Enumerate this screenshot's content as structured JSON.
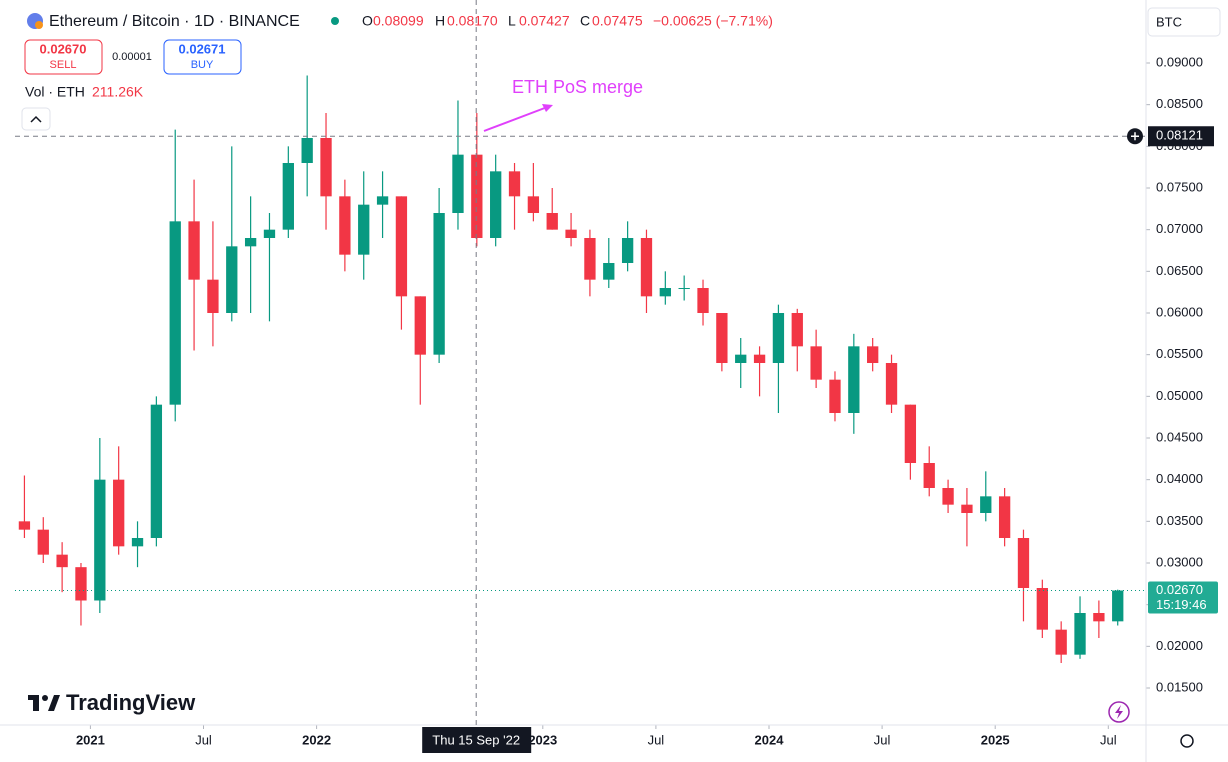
{
  "chart_data": {
    "type": "candlestick",
    "title": "Ethereum / Bitcoin · 1D · BINANCE",
    "ohlc_legend": {
      "o_label": "O",
      "o": "0.08099",
      "h_label": "H",
      "h": "0.08170",
      "l_label": "L",
      "l": "0.07427",
      "c_label": "C",
      "c": "0.07475",
      "change": "−0.00625 (−7.71%)"
    },
    "trade": {
      "sell_price": "0.02670",
      "sell_label": "SELL",
      "spread": "0.00001",
      "buy_price": "0.02671",
      "buy_label": "BUY"
    },
    "volume_legend": {
      "label": "Vol · ETH",
      "value": "211.26K"
    },
    "annotation": "ETH PoS merge",
    "currency": "BTC",
    "logo": "TradingView",
    "crosshair": {
      "price": {
        "value": 0.08121,
        "label": "0.08121"
      },
      "date": {
        "value": "2022-09-15",
        "label": "Thu 15 Sep '22"
      }
    },
    "current_price": {
      "value": 0.0267,
      "label": "0.02670",
      "countdown": "15:19:46"
    },
    "up_color": "#089981",
    "down_color": "#f23645",
    "x": [
      "2020-09",
      "2020-10",
      "2020-11",
      "2020-12",
      "2021-01",
      "2021-02",
      "2021-03",
      "2021-04",
      "2021-05",
      "2021-06",
      "2021-07",
      "2021-08",
      "2021-09",
      "2021-10",
      "2021-11",
      "2021-12",
      "2022-01",
      "2022-02",
      "2022-03",
      "2022-04",
      "2022-05",
      "2022-06",
      "2022-07",
      "2022-08",
      "2022-09",
      "2022-10",
      "2022-11",
      "2022-12",
      "2023-01",
      "2023-02",
      "2023-03",
      "2023-04",
      "2023-05",
      "2023-06",
      "2023-07",
      "2023-08",
      "2023-09",
      "2023-10",
      "2023-11",
      "2023-12",
      "2024-01",
      "2024-02",
      "2024-03",
      "2024-04",
      "2024-05",
      "2024-06",
      "2024-07",
      "2024-08",
      "2024-09",
      "2024-10",
      "2024-11",
      "2024-12",
      "2025-01",
      "2025-02",
      "2025-03",
      "2025-04",
      "2025-05",
      "2025-06",
      "2025-07"
    ],
    "open": [
      0.035,
      0.034,
      0.031,
      0.0295,
      0.0255,
      0.04,
      0.032,
      0.033,
      0.049,
      0.071,
      0.064,
      0.06,
      0.068,
      0.069,
      0.07,
      0.078,
      0.081,
      0.074,
      0.067,
      0.073,
      0.074,
      0.062,
      0.055,
      0.072,
      0.079,
      0.069,
      0.077,
      0.074,
      0.072,
      0.07,
      0.069,
      0.064,
      0.066,
      0.069,
      0.062,
      0.063,
      0.063,
      0.06,
      0.054,
      0.055,
      0.054,
      0.06,
      0.056,
      0.052,
      0.048,
      0.056,
      0.054,
      0.049,
      0.042,
      0.039,
      0.037,
      0.036,
      0.038,
      0.033,
      0.027,
      0.022,
      0.019,
      0.024,
      0.023
    ],
    "high": [
      0.0405,
      0.0355,
      0.0325,
      0.03,
      0.045,
      0.044,
      0.035,
      0.05,
      0.082,
      0.076,
      0.071,
      0.08,
      0.074,
      0.072,
      0.08,
      0.0885,
      0.084,
      0.076,
      0.077,
      0.077,
      0.074,
      0.062,
      0.075,
      0.0855,
      0.084,
      0.079,
      0.078,
      0.078,
      0.075,
      0.072,
      0.07,
      0.069,
      0.071,
      0.07,
      0.065,
      0.0645,
      0.064,
      0.06,
      0.057,
      0.056,
      0.061,
      0.0605,
      0.058,
      0.053,
      0.0575,
      0.057,
      0.055,
      0.049,
      0.044,
      0.04,
      0.039,
      0.041,
      0.039,
      0.034,
      0.028,
      0.023,
      0.026,
      0.0255,
      0.0268
    ],
    "low": [
      0.033,
      0.03,
      0.0265,
      0.0225,
      0.024,
      0.031,
      0.0295,
      0.032,
      0.047,
      0.0555,
      0.056,
      0.059,
      0.06,
      0.059,
      0.069,
      0.074,
      0.07,
      0.065,
      0.064,
      0.069,
      0.058,
      0.049,
      0.054,
      0.07,
      0.068,
      0.068,
      0.07,
      0.071,
      0.07,
      0.068,
      0.062,
      0.063,
      0.065,
      0.06,
      0.061,
      0.0615,
      0.0585,
      0.053,
      0.051,
      0.05,
      0.048,
      0.053,
      0.051,
      0.047,
      0.0455,
      0.053,
      0.048,
      0.04,
      0.038,
      0.036,
      0.032,
      0.035,
      0.032,
      0.023,
      0.021,
      0.018,
      0.0185,
      0.021,
      0.0225
    ],
    "close": [
      0.034,
      0.031,
      0.0295,
      0.0255,
      0.04,
      0.032,
      0.033,
      0.049,
      0.071,
      0.064,
      0.06,
      0.068,
      0.069,
      0.07,
      0.078,
      0.081,
      0.074,
      0.067,
      0.073,
      0.074,
      0.062,
      0.055,
      0.072,
      0.079,
      0.069,
      0.077,
      0.074,
      0.072,
      0.07,
      0.069,
      0.064,
      0.066,
      0.069,
      0.062,
      0.063,
      0.063,
      0.06,
      0.054,
      0.055,
      0.054,
      0.06,
      0.056,
      0.052,
      0.048,
      0.056,
      0.054,
      0.049,
      0.042,
      0.039,
      0.037,
      0.036,
      0.038,
      0.033,
      0.027,
      0.022,
      0.019,
      0.024,
      0.023,
      0.0267
    ],
    "xlim": [
      "2020-09",
      "2025-09"
    ],
    "xticks": [
      {
        "value": "2021-01",
        "label": "2021"
      },
      {
        "value": "2021-07",
        "label": "Jul"
      },
      {
        "value": "2022-01",
        "label": "2022"
      },
      {
        "value": "2023-01",
        "label": "2023"
      },
      {
        "value": "2023-07",
        "label": "Jul"
      },
      {
        "value": "2024-01",
        "label": "2024"
      },
      {
        "value": "2024-07",
        "label": "Jul"
      },
      {
        "value": "2025-01",
        "label": "2025"
      },
      {
        "value": "2025-07",
        "label": "Jul"
      }
    ],
    "ylim": [
      0.01056,
      0.09756
    ],
    "yticks": [
      {
        "value": 0.015,
        "label": "0.01500"
      },
      {
        "value": 0.02,
        "label": "0.02000"
      },
      {
        "value": 0.025,
        "label": "0.02500"
      },
      {
        "value": 0.03,
        "label": "0.03000"
      },
      {
        "value": 0.035,
        "label": "0.03500"
      },
      {
        "value": 0.04,
        "label": "0.04000"
      },
      {
        "value": 0.045,
        "label": "0.04500"
      },
      {
        "value": 0.05,
        "label": "0.05000"
      },
      {
        "value": 0.055,
        "label": "0.05500"
      },
      {
        "value": 0.06,
        "label": "0.06000"
      },
      {
        "value": 0.065,
        "label": "0.06500"
      },
      {
        "value": 0.07,
        "label": "0.07000"
      },
      {
        "value": 0.075,
        "label": "0.07500"
      },
      {
        "value": 0.08,
        "label": "0.08000"
      },
      {
        "value": 0.085,
        "label": "0.08500"
      },
      {
        "value": 0.09,
        "label": "0.09000"
      }
    ],
    "grid": false
  }
}
